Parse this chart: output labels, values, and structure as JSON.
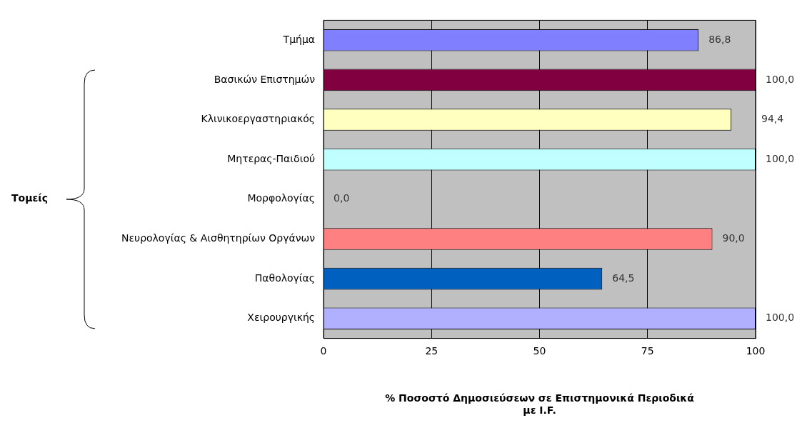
{
  "chart_data": {
    "type": "bar",
    "orientation": "horizontal",
    "categories": [
      "Τμήμα",
      "Βασικών Επιστημών",
      "Κλινικοεργαστηριακός",
      "Μητερας-Παιδιού",
      "Μορφολογίας",
      "Νευρολογίας & Αισθητηρίων Οργάνων",
      "Παθολογίας",
      "Χειρουργικής"
    ],
    "values": [
      86.8,
      100.0,
      94.4,
      100.0,
      0.0,
      90.0,
      64.5,
      100.0
    ],
    "colors": [
      "#8080ff",
      "#800040",
      "#ffffc0",
      "#c0ffff",
      "#600040",
      "#ff8080",
      "#0060c0",
      "#b0b0ff"
    ],
    "value_labels": [
      "86,8",
      "100,0",
      "94,4",
      "100,0",
      "0,0",
      "90,0",
      "64,5",
      "100,0"
    ],
    "xlim": [
      0,
      100
    ],
    "xticks": [
      0,
      25,
      50,
      75,
      100
    ],
    "grid": "x",
    "xlabel": "% Ποσοστό Δημοσιεύσεων σε Επιστημονικά Περιοδικά\nμε I.F.",
    "annotations": [
      "Τομείς"
    ]
  }
}
